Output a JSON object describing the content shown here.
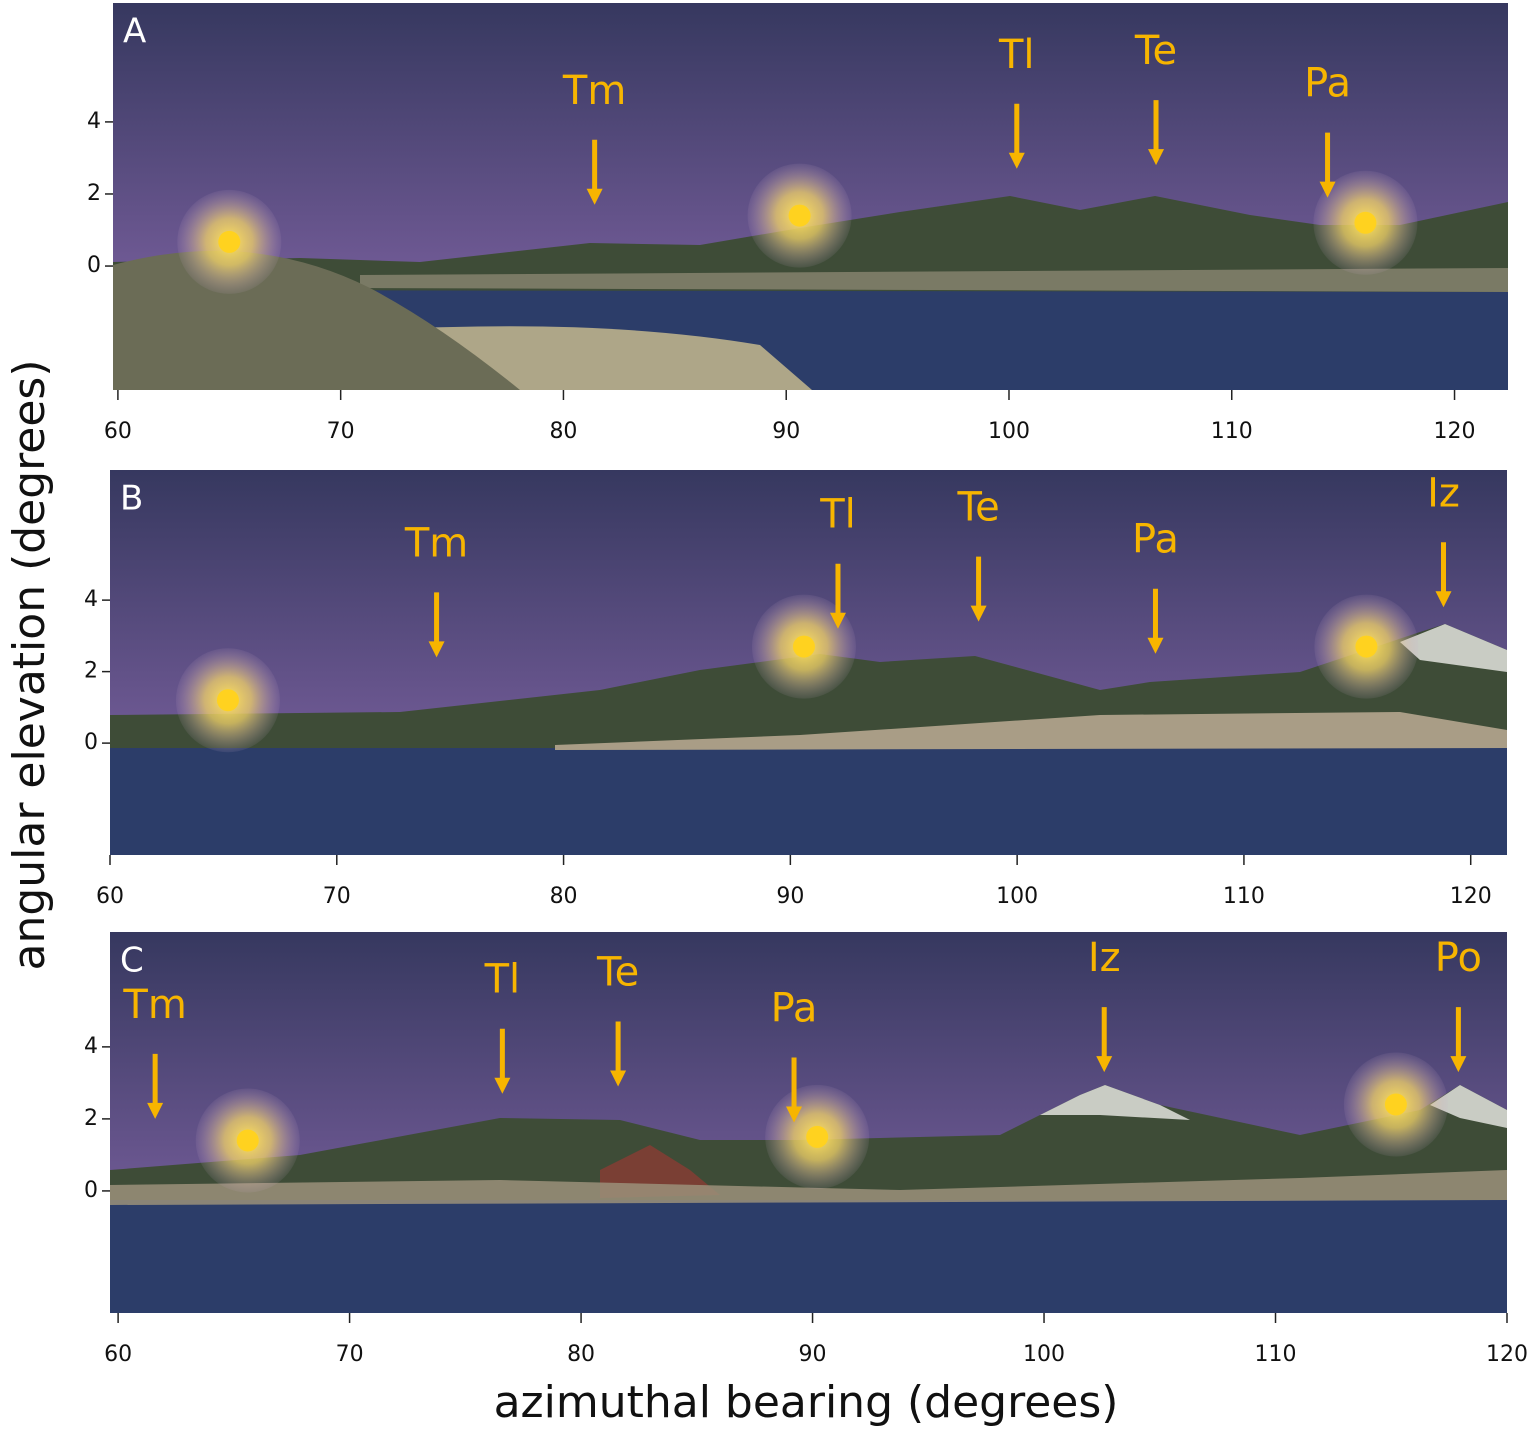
{
  "chart_data": [
    {
      "type": "panorama",
      "panel": "A",
      "xlim": [
        59.78,
        122.4
      ],
      "ylim": [
        -3.44,
        7.3
      ],
      "xticks": [
        60,
        70,
        80,
        90,
        100,
        110,
        120
      ],
      "yticks": [
        0,
        2,
        4
      ],
      "suns": [
        {
          "x": 65.0,
          "y": 0.67
        },
        {
          "x": 90.6,
          "y": 1.4
        },
        {
          "x": 116.0,
          "y": 1.2
        }
      ],
      "peaks": [
        {
          "label": "Tm",
          "x": 81.4,
          "y": 1.7
        },
        {
          "label": "Tl",
          "x": 100.35,
          "y": 2.7
        },
        {
          "label": "Te",
          "x": 106.6,
          "y": 2.8
        },
        {
          "label": "Pa",
          "x": 114.3,
          "y": 1.9
        }
      ]
    },
    {
      "type": "panorama",
      "panel": "B",
      "ylabel": "angular elevation (degrees)",
      "xlim": [
        60,
        121.6
      ],
      "ylim": [
        -3.13,
        7.64
      ],
      "xticks": [
        60,
        70,
        80,
        90,
        100,
        110,
        120
      ],
      "yticks": [
        0,
        2,
        4
      ],
      "suns": [
        {
          "x": 65.2,
          "y": 1.2
        },
        {
          "x": 90.6,
          "y": 2.7
        },
        {
          "x": 115.4,
          "y": 2.7
        }
      ],
      "peaks": [
        {
          "label": "Tm",
          "x": 74.4,
          "y": 2.4
        },
        {
          "label": "Tl",
          "x": 92.1,
          "y": 3.2
        },
        {
          "label": "Te",
          "x": 98.3,
          "y": 3.4
        },
        {
          "label": "Pa",
          "x": 106.1,
          "y": 2.5
        },
        {
          "label": "Iz",
          "x": 118.8,
          "y": 3.8
        }
      ]
    },
    {
      "type": "panorama",
      "panel": "C",
      "xlabel": "azimuthal bearing (degrees)",
      "xlim": [
        59.65,
        120
      ],
      "ylim": [
        -3.39,
        7.19
      ],
      "xticks": [
        60,
        70,
        80,
        90,
        100,
        110,
        120
      ],
      "yticks": [
        0,
        2,
        4
      ],
      "suns": [
        {
          "x": 65.6,
          "y": 1.4
        },
        {
          "x": 90.2,
          "y": 1.5
        },
        {
          "x": 115.2,
          "y": 2.4
        }
      ],
      "peaks": [
        {
          "label": "Tm",
          "x": 61.6,
          "y": 2.0
        },
        {
          "label": "Tl",
          "x": 76.6,
          "y": 2.7
        },
        {
          "label": "Te",
          "x": 81.6,
          "y": 2.9
        },
        {
          "label": "Pa",
          "x": 89.2,
          "y": 1.9
        },
        {
          "label": "Iz",
          "x": 102.6,
          "y": 3.3
        },
        {
          "label": "Po",
          "x": 117.9,
          "y": 3.3
        }
      ]
    }
  ]
}
